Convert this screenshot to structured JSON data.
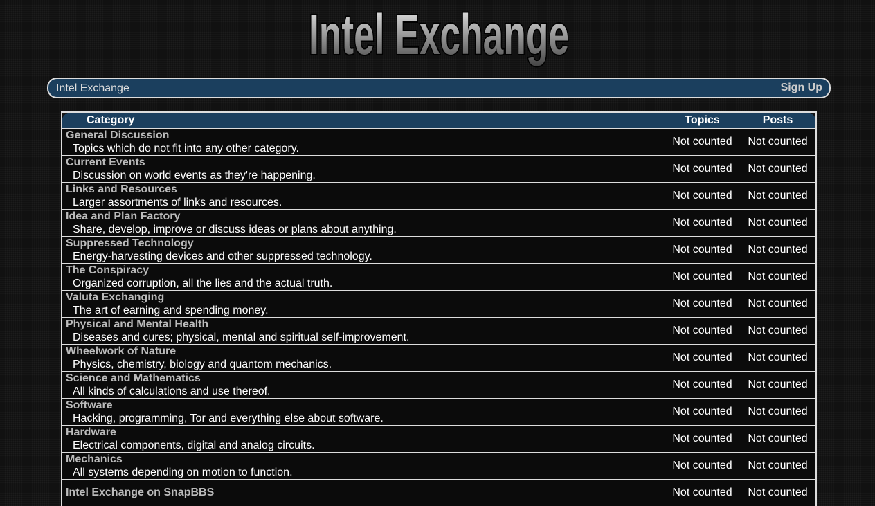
{
  "header": {
    "logo": "Intel Exchange"
  },
  "nav": {
    "home": "Intel Exchange",
    "signup": "Sign Up"
  },
  "table": {
    "columns": [
      "Category",
      "Topics",
      "Posts"
    ],
    "rows": [
      {
        "title": "General Discussion",
        "description": "Topics which do not fit into any other category.",
        "topics": "Not counted",
        "posts": "Not counted"
      },
      {
        "title": "Current Events",
        "description": "Discussion on world events as they're happening.",
        "topics": "Not counted",
        "posts": "Not counted"
      },
      {
        "title": "Links and Resources",
        "description": "Larger assortments of links and resources.",
        "topics": "Not counted",
        "posts": "Not counted"
      },
      {
        "title": "Idea and Plan Factory",
        "description": "Share, develop, improve or discuss ideas or plans about anything.",
        "topics": "Not counted",
        "posts": "Not counted"
      },
      {
        "title": "Suppressed Technology",
        "description": "Energy-harvesting devices and other suppressed technology.",
        "topics": "Not counted",
        "posts": "Not counted"
      },
      {
        "title": "The Conspiracy",
        "description": "Organized corruption, all the lies and the actual truth.",
        "topics": "Not counted",
        "posts": "Not counted"
      },
      {
        "title": "Valuta Exchanging",
        "description": "The art of earning and spending money.",
        "topics": "Not counted",
        "posts": "Not counted"
      },
      {
        "title": "Physical and Mental Health",
        "description": "Diseases and cures; physical, mental and spiritual self-improvement.",
        "topics": "Not counted",
        "posts": "Not counted"
      },
      {
        "title": "Wheelwork of Nature",
        "description": "Physics, chemistry, biology and quantom mechanics.",
        "topics": "Not counted",
        "posts": "Not counted"
      },
      {
        "title": "Science and Mathematics",
        "description": "All kinds of calculations and use thereof.",
        "topics": "Not counted",
        "posts": "Not counted"
      },
      {
        "title": "Software",
        "description": "Hacking, programming, Tor and everything else about software.",
        "topics": "Not counted",
        "posts": "Not counted"
      },
      {
        "title": "Hardware",
        "description": "Electrical components, digital and analog circuits.",
        "topics": "Not counted",
        "posts": "Not counted"
      },
      {
        "title": "Mechanics",
        "description": "All systems depending on motion to function.",
        "topics": "Not counted",
        "posts": "Not counted"
      },
      {
        "title": "Intel Exchange on SnapBBS",
        "topics": "Not counted",
        "posts": "Not counted"
      }
    ]
  }
}
